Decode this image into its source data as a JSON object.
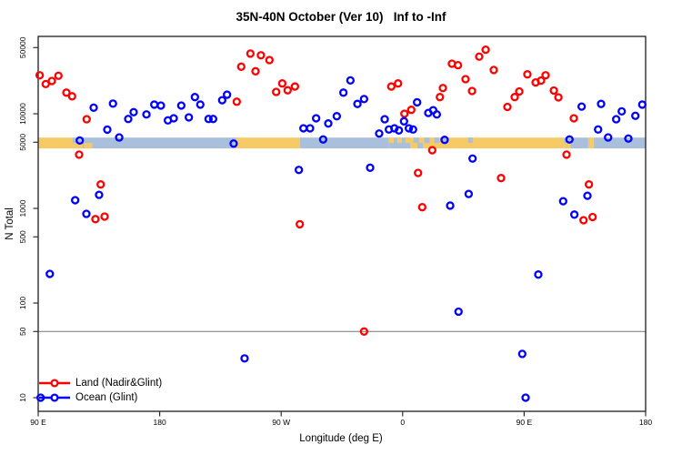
{
  "chart_data": {
    "type": "scatter",
    "title": "35N-40N October (Ver 10)   Inf to -Inf",
    "xlabel": "Longitude (deg E)",
    "ylabel": "N Total",
    "x_axis": {
      "note": "axis spans 450 deg starting at 90E and wrapping eastward past 180 to 180 again",
      "range_deg": [
        0,
        450
      ],
      "ticks": [
        {
          "deg": 0,
          "label": "90 E"
        },
        {
          "deg": 90,
          "label": "180"
        },
        {
          "deg": 180,
          "label": "90 W"
        },
        {
          "deg": 270,
          "label": "0"
        },
        {
          "deg": 360,
          "label": "90 E"
        },
        {
          "deg": 450,
          "label": "180"
        }
      ]
    },
    "y_axis": {
      "scale": "log",
      "ticks": [
        50000,
        10000,
        5000,
        1000,
        500,
        100,
        50,
        10
      ],
      "tick_labels": [
        "50000",
        "10000",
        "5000",
        "1000",
        "500",
        "100",
        "50",
        "10"
      ]
    },
    "reference_line": {
      "value": 50,
      "color": "#777777"
    },
    "band": {
      "value_low": 4300,
      "value_high": 5600,
      "land_color": "#F6CB66",
      "ocean_color": "#A9BFDC",
      "segments": [
        {
          "from": 0,
          "to": 25.6,
          "type": "land",
          "part": "full"
        },
        {
          "from": 25.6,
          "to": 48.5,
          "type": "ocean",
          "part": "full"
        },
        {
          "from": 25.6,
          "to": 33,
          "type": "land",
          "part": "bottom"
        },
        {
          "from": 34,
          "to": 40,
          "type": "land",
          "part": "bottom"
        },
        {
          "from": 48.5,
          "to": 146.8,
          "type": "ocean",
          "part": "full"
        },
        {
          "from": 146.8,
          "to": 194,
          "type": "land",
          "part": "full"
        },
        {
          "from": 194,
          "to": 259.5,
          "type": "ocean",
          "part": "full"
        },
        {
          "from": 259.5,
          "to": 276,
          "type": "ocean",
          "part": "full"
        },
        {
          "from": 260,
          "to": 263.5,
          "type": "land",
          "part": "top"
        },
        {
          "from": 266,
          "to": 269.5,
          "type": "land",
          "part": "top"
        },
        {
          "from": 272,
          "to": 275.5,
          "type": "land",
          "part": "top"
        },
        {
          "from": 276,
          "to": 306.5,
          "type": "land",
          "part": "full"
        },
        {
          "from": 278,
          "to": 282,
          "type": "ocean",
          "part": "top"
        },
        {
          "from": 281,
          "to": 285,
          "type": "ocean",
          "part": "bottom"
        },
        {
          "from": 286,
          "to": 290,
          "type": "ocean",
          "part": "top"
        },
        {
          "from": 293.5,
          "to": 297,
          "type": "ocean",
          "part": "top"
        },
        {
          "from": 300,
          "to": 302.5,
          "type": "ocean",
          "part": "top"
        },
        {
          "from": 306.5,
          "to": 389.5,
          "type": "land",
          "part": "full"
        },
        {
          "from": 318.5,
          "to": 322,
          "type": "ocean",
          "part": "top"
        },
        {
          "from": 389.5,
          "to": 407.5,
          "type": "ocean",
          "part": "full"
        },
        {
          "from": 389.5,
          "to": 394.5,
          "type": "land",
          "part": "bottom"
        },
        {
          "from": 407.5,
          "to": 411.5,
          "type": "land",
          "part": "full"
        },
        {
          "from": 411.5,
          "to": 450,
          "type": "ocean",
          "part": "full"
        }
      ]
    },
    "series": [
      {
        "name": "Land (Nadir&Glint)",
        "color": "#FF0000",
        "points": [
          [
            1.1,
            25500
          ],
          [
            5.6,
            20600
          ],
          [
            10.1,
            22200
          ],
          [
            15.0,
            25200
          ],
          [
            20.9,
            16700
          ],
          [
            25.1,
            15300
          ],
          [
            30.3,
            3700
          ],
          [
            35.9,
            8750
          ],
          [
            42.4,
            770
          ],
          [
            46.3,
            1790
          ],
          [
            49.2,
            820
          ],
          [
            147.1,
            13400
          ],
          [
            150.4,
            31400
          ],
          [
            157.2,
            43200
          ],
          [
            161.0,
            28100
          ],
          [
            165.0,
            41500
          ],
          [
            171.3,
            36900
          ],
          [
            176.3,
            17000
          ],
          [
            180.8,
            20900
          ],
          [
            184.8,
            17700
          ],
          [
            190.2,
            19400
          ],
          [
            193.8,
            680
          ],
          [
            241.4,
            50
          ],
          [
            261.6,
            19400
          ],
          [
            266.6,
            20900
          ],
          [
            271.3,
            10000
          ],
          [
            276.4,
            11000
          ],
          [
            281.4,
            2370
          ],
          [
            284.5,
            1030
          ],
          [
            291.9,
            4120
          ],
          [
            297.6,
            15000
          ],
          [
            299.8,
            18700
          ],
          [
            306.5,
            33800
          ],
          [
            311.0,
            32600
          ],
          [
            316.6,
            23200
          ],
          [
            321.4,
            17400
          ],
          [
            326.7,
            40100
          ],
          [
            331.5,
            47500
          ],
          [
            337.5,
            29000
          ],
          [
            342.9,
            2090
          ],
          [
            347.6,
            11800
          ],
          [
            353.0,
            15000
          ],
          [
            356.4,
            17200
          ],
          [
            362.4,
            26100
          ],
          [
            368.5,
            21400
          ],
          [
            372.5,
            22400
          ],
          [
            375.9,
            25500
          ],
          [
            382.0,
            17600
          ],
          [
            385.4,
            14900
          ],
          [
            391.4,
            3700
          ],
          [
            396.8,
            8950
          ],
          [
            404.0,
            750
          ],
          [
            408.0,
            1790
          ],
          [
            410.7,
            810
          ]
        ]
      },
      {
        "name": "Ocean (Glint)",
        "color": "#0000FF",
        "points": [
          [
            1.8,
            10
          ],
          [
            8.6,
            203
          ],
          [
            27.4,
            1220
          ],
          [
            30.8,
            5220
          ],
          [
            35.7,
            875
          ],
          [
            41.1,
            11600
          ],
          [
            45.1,
            1390
          ],
          [
            51.2,
            6800
          ],
          [
            55.4,
            12800
          ],
          [
            60.0,
            5620
          ],
          [
            66.7,
            8800
          ],
          [
            70.7,
            10400
          ],
          [
            80.2,
            9840
          ],
          [
            86.0,
            12500
          ],
          [
            90.9,
            12200
          ],
          [
            96.1,
            8510
          ],
          [
            100.4,
            8950
          ],
          [
            106.0,
            12200
          ],
          [
            111.6,
            9160
          ],
          [
            116.1,
            15000
          ],
          [
            120.1,
            12500
          ],
          [
            126.2,
            8800
          ],
          [
            129.6,
            8800
          ],
          [
            136.3,
            13900
          ],
          [
            139.9,
            15900
          ],
          [
            144.8,
            4840
          ],
          [
            152.9,
            26
          ],
          [
            193.1,
            2550
          ],
          [
            196.5,
            7020
          ],
          [
            201.4,
            7020
          ],
          [
            205.9,
            8950
          ],
          [
            211.1,
            5350
          ],
          [
            214.9,
            7890
          ],
          [
            221.2,
            9420
          ],
          [
            226.1,
            16700
          ],
          [
            231.3,
            22500
          ],
          [
            236.5,
            12700
          ],
          [
            241.4,
            14300
          ],
          [
            245.9,
            2690
          ],
          [
            252.6,
            6180
          ],
          [
            256.7,
            8750
          ],
          [
            259.8,
            6820
          ],
          [
            263.9,
            7020
          ],
          [
            267.2,
            6670
          ],
          [
            271.0,
            8320
          ],
          [
            274.6,
            7020
          ],
          [
            277.7,
            6820
          ],
          [
            280.7,
            13200
          ],
          [
            289.0,
            10200
          ],
          [
            292.6,
            10900
          ],
          [
            295.3,
            9840
          ],
          [
            301.1,
            5300
          ],
          [
            305.2,
            1070
          ],
          [
            311.4,
            81
          ],
          [
            318.9,
            1420
          ],
          [
            321.8,
            3360
          ],
          [
            358.6,
            29
          ],
          [
            361.1,
            10
          ],
          [
            370.5,
            200
          ],
          [
            388.9,
            1190
          ],
          [
            393.6,
            5350
          ],
          [
            397.2,
            860
          ],
          [
            402.6,
            11900
          ],
          [
            406.9,
            1360
          ],
          [
            414.8,
            6820
          ],
          [
            417.0,
            12700
          ],
          [
            422.2,
            5620
          ],
          [
            428.2,
            8750
          ],
          [
            432.3,
            10600
          ],
          [
            437.2,
            5470
          ],
          [
            442.4,
            9510
          ],
          [
            447.5,
            12500
          ]
        ]
      }
    ],
    "legend_position": "bottom-left"
  }
}
